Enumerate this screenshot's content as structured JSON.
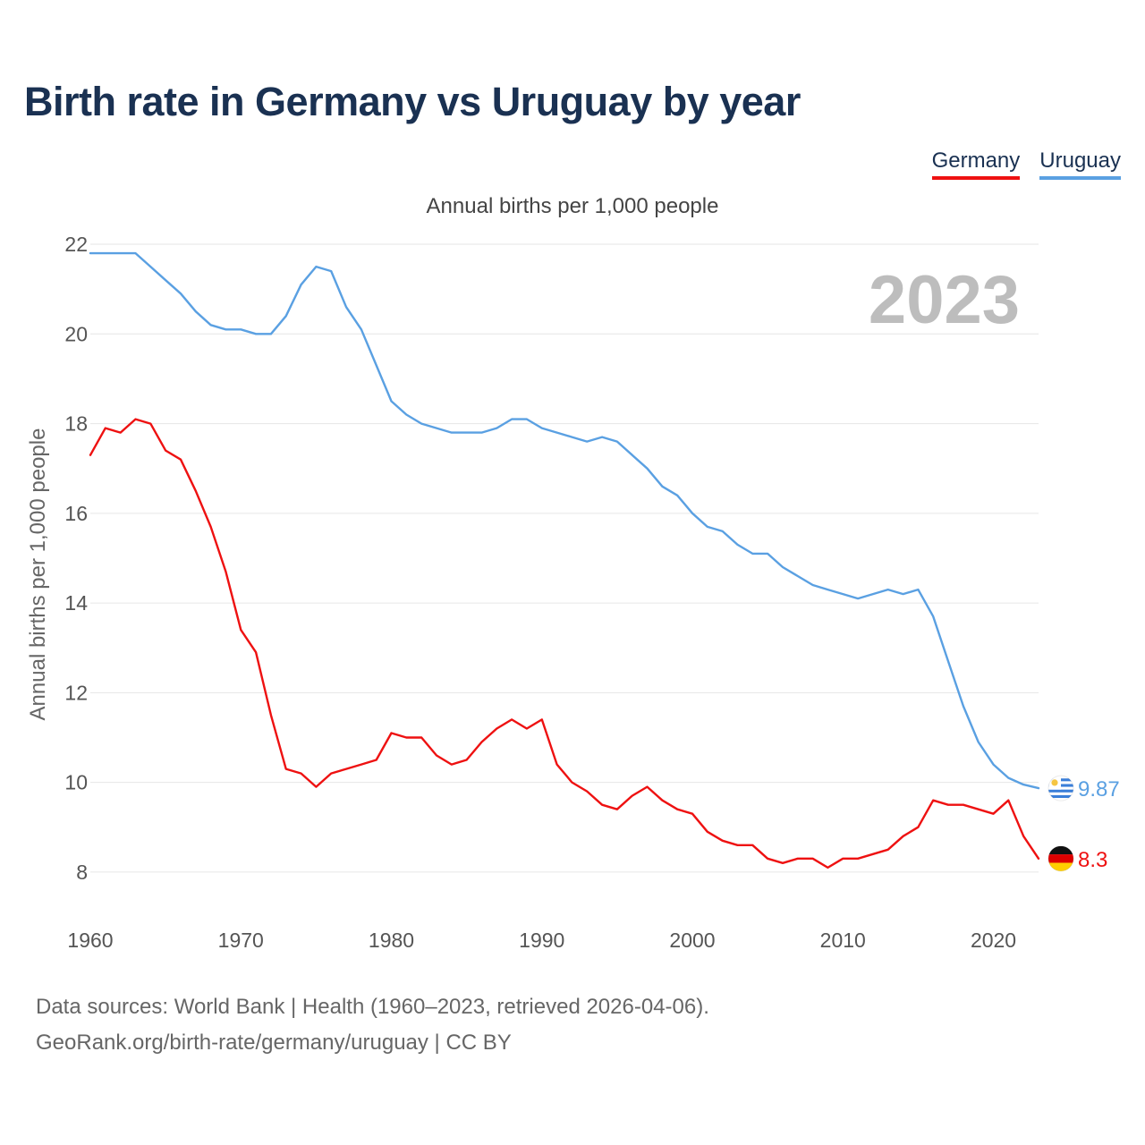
{
  "chart_data": {
    "type": "line",
    "title": "Birth rate in Germany vs Uruguay by year",
    "subtitle": "Annual births per 1,000 people",
    "ylabel": "Annual births per 1,000 people",
    "xlabel": "",
    "current_year": "2023",
    "xlim": [
      1960,
      2023
    ],
    "ylim": [
      7,
      22.4
    ],
    "x_ticks": [
      1960,
      1970,
      1980,
      1990,
      2000,
      2010,
      2020
    ],
    "y_ticks": [
      8,
      10,
      12,
      14,
      16,
      18,
      20,
      22
    ],
    "grid": true,
    "legend": "top-right",
    "series": [
      {
        "name": "Germany",
        "color": "#ee1111",
        "flag": "germany-flag",
        "end_label": "8.3",
        "start_year": 1960,
        "values": [
          17.3,
          17.9,
          17.8,
          18.1,
          18.0,
          17.4,
          17.2,
          16.5,
          15.7,
          14.7,
          13.4,
          12.9,
          11.5,
          10.3,
          10.2,
          9.9,
          10.2,
          10.3,
          10.4,
          10.5,
          11.1,
          11.0,
          11.0,
          10.6,
          10.4,
          10.5,
          10.9,
          11.2,
          11.4,
          11.2,
          11.4,
          10.4,
          10.0,
          9.8,
          9.5,
          9.4,
          9.7,
          9.9,
          9.6,
          9.4,
          9.3,
          8.9,
          8.7,
          8.6,
          8.6,
          8.3,
          8.2,
          8.3,
          8.3,
          8.1,
          8.3,
          8.3,
          8.4,
          8.5,
          8.8,
          9.0,
          9.6,
          9.5,
          9.5,
          9.4,
          9.3,
          9.6,
          8.8,
          8.3
        ]
      },
      {
        "name": "Uruguay",
        "color": "#5aa0e2",
        "flag": "uruguay-flag",
        "end_label": "9.87",
        "start_year": 1960,
        "values": [
          21.8,
          21.8,
          21.8,
          21.8,
          21.5,
          21.2,
          20.9,
          20.5,
          20.2,
          20.1,
          20.1,
          20.0,
          20.0,
          20.4,
          21.1,
          21.5,
          21.4,
          20.6,
          20.1,
          19.3,
          18.5,
          18.2,
          18.0,
          17.9,
          17.8,
          17.8,
          17.8,
          17.9,
          18.1,
          18.1,
          17.9,
          17.8,
          17.7,
          17.6,
          17.7,
          17.6,
          17.3,
          17.0,
          16.6,
          16.4,
          16.0,
          15.7,
          15.6,
          15.3,
          15.1,
          15.1,
          14.8,
          14.6,
          14.4,
          14.3,
          14.2,
          14.1,
          14.2,
          14.3,
          14.2,
          14.3,
          13.7,
          12.7,
          11.7,
          10.9,
          10.4,
          10.1,
          9.95,
          9.87
        ]
      }
    ]
  },
  "footer": {
    "line1": "Data sources: World Bank | Health (1960–2023, retrieved 2026-04-06).",
    "line2": "GeoRank.org/birth-rate/germany/uruguay | CC BY"
  }
}
